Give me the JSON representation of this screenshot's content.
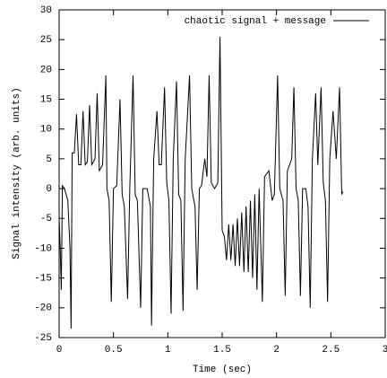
{
  "chart_data": {
    "type": "line",
    "xlabel": "Time (sec)",
    "ylabel": "Signal intensity (arb. units)",
    "x": [
      0,
      0.01,
      0.02,
      0.03,
      0.05,
      0.08,
      0.1,
      0.11,
      0.12,
      0.14,
      0.16,
      0.18,
      0.2,
      0.22,
      0.24,
      0.26,
      0.28,
      0.3,
      0.33,
      0.35,
      0.37,
      0.4,
      0.43,
      0.44,
      0.46,
      0.48,
      0.5,
      0.53,
      0.56,
      0.58,
      0.6,
      0.63,
      0.65,
      0.68,
      0.7,
      0.72,
      0.75,
      0.77,
      0.81,
      0.84,
      0.85,
      0.87,
      0.9,
      0.92,
      0.94,
      0.97,
      0.99,
      1.01,
      1.03,
      1.05,
      1.08,
      1.1,
      1.12,
      1.14,
      1.16,
      1.2,
      1.22,
      1.25,
      1.27,
      1.29,
      1.31,
      1.34,
      1.36,
      1.38,
      1.4,
      1.43,
      1.46,
      1.48,
      1.5,
      1.52,
      1.54,
      1.56,
      1.58,
      1.6,
      1.62,
      1.64,
      1.66,
      1.68,
      1.7,
      1.72,
      1.74,
      1.76,
      1.78,
      1.8,
      1.82,
      1.84,
      1.87,
      1.89,
      1.93,
      1.96,
      1.98,
      2.01,
      2.03,
      2.06,
      2.08,
      2.1,
      2.14,
      2.16,
      2.18,
      2.2,
      2.22,
      2.24,
      2.27,
      2.29,
      2.31,
      2.33,
      2.36,
      2.38,
      2.41,
      2.43,
      2.45,
      2.47,
      2.49,
      2.52,
      2.55,
      2.58,
      2.6,
      2.61
    ],
    "series": [
      {
        "name": "chaotic signal + message",
        "color": "#000000",
        "values": [
          -5,
          -10,
          -17,
          0.5,
          0,
          -2,
          -10,
          -23.5,
          6,
          6,
          12.5,
          4,
          4,
          13,
          4,
          4.5,
          14,
          4,
          5,
          16,
          3,
          4,
          19,
          0,
          -2,
          -19,
          0,
          0.5,
          15,
          -1,
          -3,
          -18.5,
          0,
          19,
          -1,
          -2,
          -20,
          0,
          0,
          -3,
          -23,
          5,
          13,
          4,
          4,
          17,
          1,
          -2,
          -21,
          5,
          18,
          -1,
          -2,
          -20.5,
          5,
          19,
          0,
          -3,
          -17,
          0,
          0.5,
          5,
          2,
          19,
          1,
          0,
          1,
          25.5,
          -7,
          -8,
          -12,
          -6,
          -12,
          -6,
          -13,
          -5,
          -13,
          -4,
          -14,
          -3,
          -14,
          -2,
          -15,
          -1,
          -17,
          0,
          -19,
          2,
          3,
          -2,
          -1,
          19,
          0,
          -2,
          -18,
          3,
          5,
          17,
          0,
          -2,
          -18,
          0,
          0,
          -3,
          -20,
          5,
          16,
          4,
          17,
          1,
          -2,
          -19,
          5,
          13,
          5,
          17,
          -1,
          -0.5
        ]
      }
    ],
    "xlim": [
      0,
      3
    ],
    "xticks": [
      0,
      0.5,
      1,
      1.5,
      2,
      2.5,
      3
    ],
    "ylim": [
      -25,
      30
    ],
    "yticks": [
      -25,
      -20,
      -15,
      -10,
      -5,
      0,
      5,
      10,
      15,
      20,
      25,
      30
    ],
    "legend": "top-right"
  }
}
